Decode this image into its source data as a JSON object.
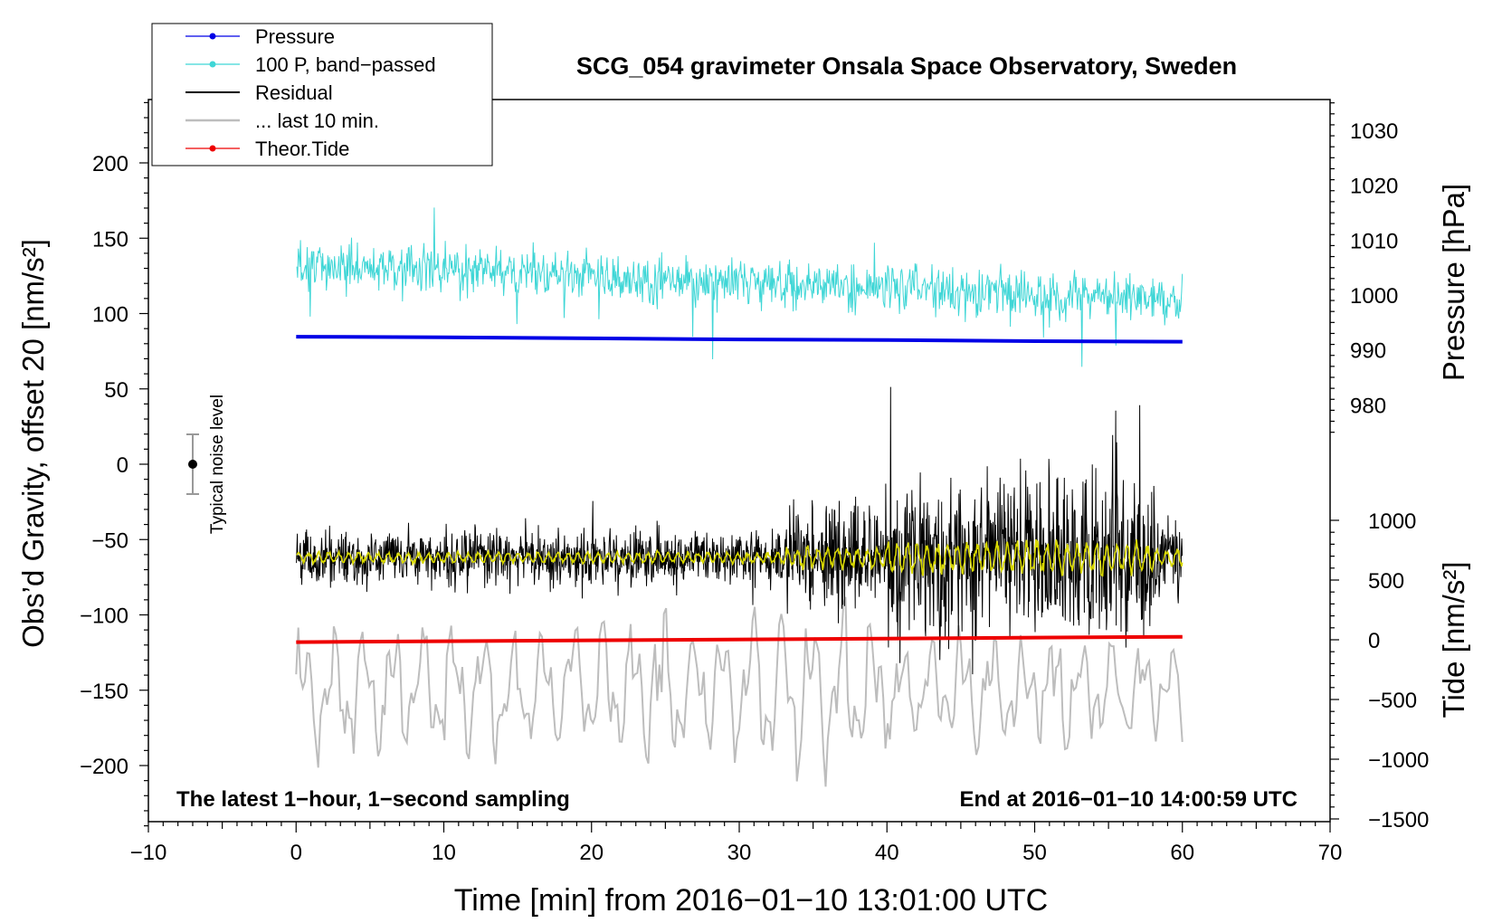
{
  "chart_data": {
    "type": "line",
    "title": "SCG_054 gravimeter Onsala Space Observatory, Sweden",
    "xlabel": "Time [min] from 2016−01−10 13:01:00 UTC",
    "ylabel_left": "Obs’d Gravity, offset 20 [nm/s²]",
    "ylabel_pressure": "Pressure [hPa]",
    "ylabel_tide": "Tide [nm/s²]",
    "xlim": [
      -10,
      70
    ],
    "ylim_left": [
      -240,
      240
    ],
    "x_ticks": [
      "−10",
      "0",
      "10",
      "20",
      "30",
      "40",
      "50",
      "60",
      "70"
    ],
    "y_ticks_left": [
      "200",
      "150",
      "100",
      "50",
      "0",
      "−50",
      "−100",
      "−150",
      "−200"
    ],
    "y_ticks_pressure": [
      "1030",
      "1020",
      "1010",
      "1000",
      "990",
      "980"
    ],
    "y_ticks_tide": [
      "1000",
      "500",
      "0",
      "−500",
      "−1000",
      "−1500"
    ],
    "legend": [
      "Pressure",
      "100 P, band−passed",
      "Residual",
      "... last 10 min.",
      "Theor.Tide"
    ],
    "legend_position": "top-left",
    "noise_label": "Typical noise level",
    "footnote_left": "The latest 1−hour, 1−second sampling",
    "footnote_right": "End at 2016−01−10 14:00:59 UTC",
    "colors": {
      "pressure": "#0000e6",
      "bandpass": "#3fd6d6",
      "residual": "#000000",
      "last10": "#bdbdbd",
      "tide": "#ee0000",
      "smoothed": "#d8d800"
    },
    "series": [
      {
        "name": "Pressure",
        "unit": "hPa",
        "x": [
          0,
          10,
          20,
          30,
          40,
          50,
          60
        ],
        "values": [
          992.4,
          992.3,
          992.1,
          991.9,
          991.8,
          991.6,
          991.5
        ]
      },
      {
        "name": "100 P, band−passed",
        "unit": "nm/s²",
        "x": [
          0,
          10,
          20,
          30,
          40,
          50,
          60
        ],
        "values": [
          130,
          130,
          125,
          120,
          118,
          113,
          108
        ]
      },
      {
        "name": "Residual",
        "unit": "nm/s²",
        "x": [
          0,
          10,
          20,
          30,
          40,
          50,
          60
        ],
        "values": [
          -62,
          -62,
          -62,
          -62,
          -62,
          -62,
          -62
        ]
      },
      {
        "name": "Theor.Tide",
        "unit": "nm/s²",
        "x": [
          0,
          60
        ],
        "values": [
          -20,
          25
        ]
      }
    ]
  }
}
